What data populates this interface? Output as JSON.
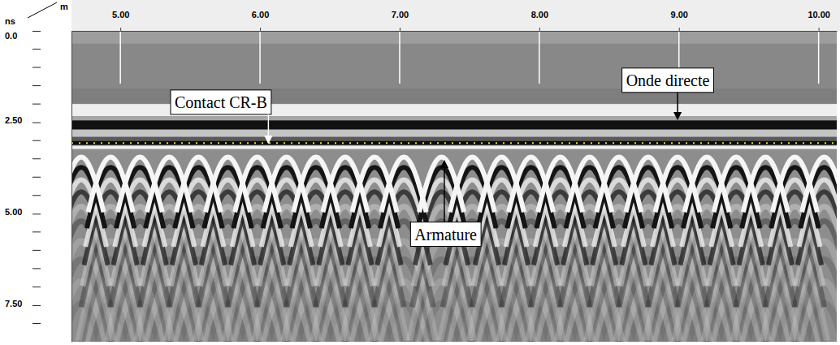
{
  "chart_data": {
    "type": "radargram",
    "x_label": "m",
    "y_label": "ns",
    "xlim": [
      4.65,
      10.13
    ],
    "ylim": [
      0,
      8.5
    ],
    "xticks": [
      {
        "value": 5,
        "label": "5.00"
      },
      {
        "value": 6,
        "label": "6.00"
      },
      {
        "value": 7,
        "label": "7.00"
      },
      {
        "value": 8,
        "label": "8.00"
      },
      {
        "value": 9,
        "label": "9.00"
      },
      {
        "value": 10,
        "label": "10.00"
      }
    ],
    "yticks": [
      {
        "value": 0,
        "label": "0.0"
      },
      {
        "value": 2.5,
        "label": "2.50"
      },
      {
        "value": 5,
        "label": "5.00"
      },
      {
        "value": 7.5,
        "label": "7.50"
      }
    ],
    "yticks_minor": [
      0.5,
      1,
      1.5,
      2,
      3,
      3.5,
      4,
      4.5,
      5.5,
      6,
      6.5,
      7,
      8
    ],
    "direct_wave_t": 2.58,
    "contact_t": 3.07,
    "rebars": {
      "t": 3.45,
      "x": [
        4.72,
        4.93,
        5.14,
        5.35,
        5.56,
        5.77,
        5.98,
        6.19,
        6.4,
        6.61,
        6.82,
        7.03,
        7.3,
        7.52,
        7.73,
        7.94,
        8.15,
        8.36,
        8.57,
        8.78,
        8.99,
        9.2,
        9.41,
        9.62,
        9.83,
        10.04
      ]
    },
    "annotations": [
      {
        "text": "Contact CR-B",
        "x": 6.06,
        "t": 3.07,
        "text_x": 5.72,
        "text_t": 1.95,
        "color": "#ffffff"
      },
      {
        "text": "Onde directe",
        "x": 8.99,
        "t": 2.42,
        "text_x": 8.92,
        "text_t": 1.35,
        "color": "#000000"
      },
      {
        "text": "Armature",
        "x": 7.32,
        "t": 3.55,
        "text_x": 7.33,
        "text_t": 5.56,
        "color": "#000000"
      }
    ]
  }
}
